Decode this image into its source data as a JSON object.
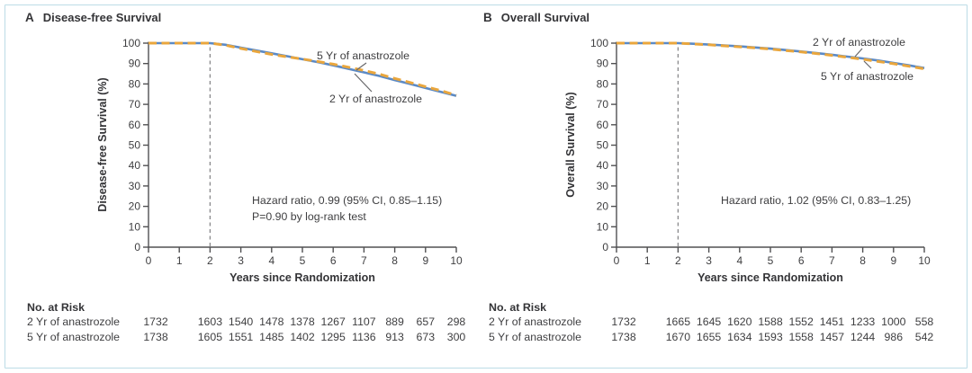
{
  "figure": {
    "background": "#ffffff",
    "frame_border_color": "#bcdce6",
    "text_color": "#3e3e40",
    "axis_color": "#505052",
    "blue_curve_color": "#5b8ac6",
    "orange_curve_color": "#e9a63d"
  },
  "panels": [
    {
      "letter": "A",
      "title": "Disease-free Survival",
      "y_axis_label": "Disease-free Survival (%)",
      "x_axis_label": "Years since Randomization",
      "annotation_line1": "Hazard ratio, 0.99 (95% CI, 0.85–1.15)",
      "annotation_line2": "P=0.90 by log-rank test",
      "at_risk": {
        "header": "No. at Risk",
        "value_years": [
          0,
          2,
          3,
          4,
          5,
          6,
          7,
          8,
          9,
          10
        ],
        "rows": [
          {
            "label": "2 Yr of anastrozole",
            "values": [
              1732,
              1603,
              1540,
              1478,
              1378,
              1267,
              1107,
              889,
              657,
              298
            ]
          },
          {
            "label": "5 Yr of anastrozole",
            "values": [
              1738,
              1605,
              1551,
              1485,
              1402,
              1295,
              1136,
              913,
              673,
              300
            ]
          }
        ]
      }
    },
    {
      "letter": "B",
      "title": "Overall Survival",
      "y_axis_label": "Overall Survival (%)",
      "x_axis_label": "Years since Randomization",
      "annotation_line1": "Hazard ratio, 1.02 (95% CI, 0.83–1.25)",
      "annotation_line2": "",
      "at_risk": {
        "header": "No. at Risk",
        "value_years": [
          0,
          2,
          3,
          4,
          5,
          6,
          7,
          8,
          9,
          10
        ],
        "rows": [
          {
            "label": "2 Yr of anastrozole",
            "values": [
              1732,
              1665,
              1645,
              1620,
              1588,
              1552,
              1451,
              1233,
              1000,
              558
            ]
          },
          {
            "label": "5 Yr of anastrozole",
            "values": [
              1738,
              1670,
              1655,
              1634,
              1593,
              1558,
              1457,
              1244,
              986,
              542
            ]
          }
        ]
      }
    }
  ],
  "chart_data": [
    {
      "type": "line",
      "title": "Disease-free Survival",
      "xlabel": "Years since Randomization",
      "ylabel": "Disease-free Survival (%)",
      "xlim": [
        0,
        10
      ],
      "ylim": [
        0,
        100
      ],
      "xticks": [
        0,
        1,
        2,
        3,
        4,
        5,
        6,
        7,
        8,
        9,
        10
      ],
      "yticks": [
        0,
        10,
        20,
        30,
        40,
        50,
        60,
        70,
        80,
        90,
        100
      ],
      "grid": false,
      "legend_position": "inline-labels",
      "reference_line_x": 2,
      "annotations": [
        "Hazard ratio, 0.99 (95% CI, 0.85–1.15)",
        "P=0.90 by log-rank test"
      ],
      "series": [
        {
          "name": "2 Yr of anastrozole",
          "color": "#5b8ac6",
          "style": "solid",
          "points": [
            [
              0,
              100
            ],
            [
              0.5,
              100
            ],
            [
              1,
              100
            ],
            [
              1.5,
              100
            ],
            [
              2,
              100
            ],
            [
              2.5,
              99.2
            ],
            [
              3,
              97.8
            ],
            [
              3.5,
              96.4
            ],
            [
              4,
              95.0
            ],
            [
              4.5,
              93.6
            ],
            [
              5,
              92.1
            ],
            [
              5.5,
              90.7
            ],
            [
              6,
              89.1
            ],
            [
              6.5,
              87.4
            ],
            [
              7,
              85.7
            ],
            [
              7.5,
              83.9
            ],
            [
              8,
              81.9
            ],
            [
              8.5,
              80.0
            ],
            [
              9,
              78.0
            ],
            [
              9.5,
              76.1
            ],
            [
              10,
              74.2
            ]
          ]
        },
        {
          "name": "5 Yr of anastrozole",
          "color": "#e9a63d",
          "style": "dashed",
          "points": [
            [
              0,
              100
            ],
            [
              0.5,
              100
            ],
            [
              1,
              100
            ],
            [
              1.5,
              100
            ],
            [
              2,
              100
            ],
            [
              2.5,
              99.0
            ],
            [
              3,
              97.4
            ],
            [
              3.5,
              95.9
            ],
            [
              4,
              94.5
            ],
            [
              4.5,
              93.3
            ],
            [
              5,
              92.2
            ],
            [
              5.5,
              91.0
            ],
            [
              6,
              89.7
            ],
            [
              6.5,
              88.2
            ],
            [
              7,
              86.6
            ],
            [
              7.5,
              84.8
            ],
            [
              8,
              82.7
            ],
            [
              8.5,
              80.7
            ],
            [
              9,
              78.7
            ],
            [
              9.5,
              76.7
            ],
            [
              10,
              74.5
            ]
          ]
        }
      ]
    },
    {
      "type": "line",
      "title": "Overall Survival",
      "xlabel": "Years since Randomization",
      "ylabel": "Overall Survival (%)",
      "xlim": [
        0,
        10
      ],
      "ylim": [
        0,
        100
      ],
      "xticks": [
        0,
        1,
        2,
        3,
        4,
        5,
        6,
        7,
        8,
        9,
        10
      ],
      "yticks": [
        0,
        10,
        20,
        30,
        40,
        50,
        60,
        70,
        80,
        90,
        100
      ],
      "grid": false,
      "legend_position": "inline-labels",
      "reference_line_x": 2,
      "annotations": [
        "Hazard ratio, 1.02 (95% CI, 0.83–1.25)"
      ],
      "series": [
        {
          "name": "2 Yr of anastrozole",
          "color": "#5b8ac6",
          "style": "solid",
          "points": [
            [
              0,
              100
            ],
            [
              1,
              100
            ],
            [
              2,
              100
            ],
            [
              2.5,
              99.7
            ],
            [
              3,
              99.3
            ],
            [
              3.5,
              98.9
            ],
            [
              4,
              98.4
            ],
            [
              4.5,
              97.9
            ],
            [
              5,
              97.3
            ],
            [
              5.5,
              96.6
            ],
            [
              6,
              95.9
            ],
            [
              6.5,
              95.1
            ],
            [
              7,
              94.3
            ],
            [
              7.5,
              93.4
            ],
            [
              8,
              92.5
            ],
            [
              8.5,
              91.5
            ],
            [
              9,
              90.3
            ],
            [
              9.5,
              89.1
            ],
            [
              10,
              87.8
            ]
          ]
        },
        {
          "name": "5 Yr of anastrozole",
          "color": "#e9a63d",
          "style": "dashed",
          "points": [
            [
              0,
              100
            ],
            [
              1,
              100
            ],
            [
              2,
              100
            ],
            [
              2.5,
              99.6
            ],
            [
              3,
              99.2
            ],
            [
              3.5,
              98.7
            ],
            [
              4,
              98.2
            ],
            [
              4.5,
              97.7
            ],
            [
              5,
              97.1
            ],
            [
              5.5,
              96.4
            ],
            [
              6,
              95.7
            ],
            [
              6.5,
              94.9
            ],
            [
              7,
              94.0
            ],
            [
              7.5,
              93.1
            ],
            [
              8,
              92.1
            ],
            [
              8.5,
              91.0
            ],
            [
              9,
              89.9
            ],
            [
              9.5,
              88.7
            ],
            [
              10,
              87.4
            ]
          ]
        }
      ]
    }
  ]
}
